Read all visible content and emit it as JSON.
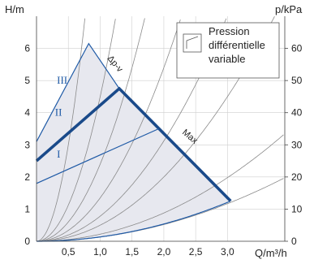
{
  "chart_data": {
    "type": "line",
    "ylabel_left": "H/m",
    "ylabel_right": "p/kPa",
    "xlabel": "Q/m³/h",
    "x_ticks": [
      "0,5",
      "1,0",
      "1,5",
      "2,0",
      "2,5",
      "3,0"
    ],
    "y_left_ticks": [
      "0",
      "1",
      "2",
      "3",
      "4",
      "5",
      "6"
    ],
    "y_right_ticks": [
      "0",
      "10",
      "20",
      "30",
      "40",
      "50",
      "60"
    ],
    "xlim": [
      0,
      3.9
    ],
    "ylim": [
      0,
      7.0
    ],
    "grid": true,
    "legend": {
      "lines": [
        "Pression",
        "différentielle",
        "variable"
      ],
      "placement": "top-right"
    },
    "dp_label": "Δp-v",
    "max_label": "Max",
    "series": [
      {
        "name": "III",
        "points": [
          [
            0,
            3.1
          ],
          [
            0.82,
            6.15
          ],
          [
            1.3,
            4.75
          ]
        ]
      },
      {
        "name": "II",
        "points": [
          [
            0,
            2.5
          ],
          [
            1.3,
            4.75
          ],
          [
            3.05,
            1.25
          ]
        ],
        "highlighted": true
      },
      {
        "name": "I",
        "points": [
          [
            0,
            1.8
          ],
          [
            1.92,
            3.5
          ]
        ]
      }
    ],
    "system_curves": [
      {
        "k": 12.0
      },
      {
        "k": 4.5
      },
      {
        "k": 2.4
      },
      {
        "k": 1.35
      },
      {
        "k": 0.78
      },
      {
        "k": 0.5
      },
      {
        "k": 0.22
      },
      {
        "k": 0.13
      }
    ],
    "colors": {
      "accent": "#1f5aa6",
      "highlight": "#1a4a8a",
      "area_fill": "#e7e8ef"
    }
  }
}
